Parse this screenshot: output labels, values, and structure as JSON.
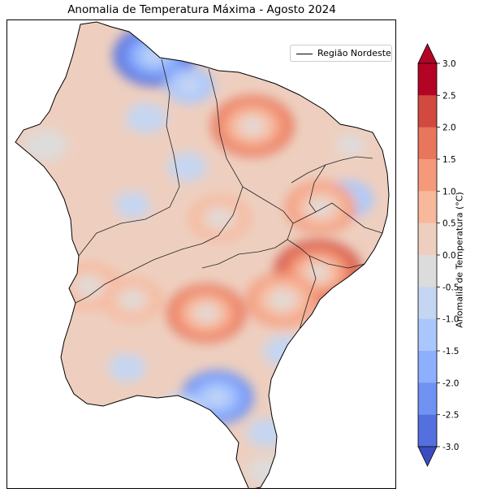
{
  "title": "Anomalia de Temperatura Máxima - Agosto 2024",
  "legend": {
    "label": "Região Nordeste",
    "line_color": "#000000"
  },
  "colorbar": {
    "label": "Anomalia de Temperatura (°C)",
    "ticks": [
      "3.0",
      "2.5",
      "2.0",
      "1.5",
      "1.0",
      "0.5",
      "0.0",
      "-0.5",
      "-1.0",
      "-1.5",
      "-2.0",
      "-2.5",
      "-3.0"
    ],
    "colors": [
      "#b40426",
      "#d1493f",
      "#e8765c",
      "#f49a7b",
      "#f7b89c",
      "#eecfbf",
      "#dddcdc",
      "#c5d6f2",
      "#aac7fd",
      "#8db0fe",
      "#6f92f3",
      "#5470de",
      "#3b4cc0"
    ],
    "over_color": "#b40426",
    "under_color": "#3b4cc0"
  },
  "chart_data": {
    "type": "heatmap",
    "title": "Anomalia de Temperatura Máxima - Agosto 2024",
    "variable": "Anomalia de Temperatura (°C)",
    "levels": [
      -3.0,
      -2.5,
      -2.0,
      -1.5,
      -1.0,
      -0.5,
      0.0,
      0.5,
      1.0,
      1.5,
      2.0,
      2.5,
      3.0
    ],
    "vmin": -3.0,
    "vmax": 3.0,
    "extend": "both",
    "colormap": "coolwarm",
    "legend_placement": "top-right",
    "colorbar_placement": "right",
    "base_anomaly": 0.6,
    "features": [
      {
        "lon": -43.5,
        "lat": -2.3,
        "value": -2.6
      },
      {
        "lon": -42.2,
        "lat": -3.4,
        "value": -0.8
      },
      {
        "lon": -39.9,
        "lat": -4.9,
        "value": 2.6
      },
      {
        "lon": -36.3,
        "lat": -5.6,
        "value": 1.2
      },
      {
        "lon": -36.4,
        "lat": -7.6,
        "value": -0.9
      },
      {
        "lon": -37.4,
        "lat": -7.9,
        "value": 2.0
      },
      {
        "lon": -37.5,
        "lat": -10.3,
        "value": 2.9
      },
      {
        "lon": -38.8,
        "lat": -11.3,
        "value": 2.1
      },
      {
        "lon": -41.6,
        "lat": -11.8,
        "value": 2.4
      },
      {
        "lon": -41.2,
        "lat": -14.9,
        "value": -2.1
      },
      {
        "lon": -42.5,
        "lat": -15.4,
        "value": -0.6
      },
      {
        "lon": -39.4,
        "lat": -16.2,
        "value": -0.3
      },
      {
        "lon": -44.5,
        "lat": -13.8,
        "value": -0.2
      },
      {
        "lon": -42.3,
        "lat": -6.4,
        "value": -0.3
      },
      {
        "lon": -44.3,
        "lat": -7.8,
        "value": -0.1
      },
      {
        "lon": -41.1,
        "lat": -8.3,
        "value": 1.5
      },
      {
        "lon": -47.5,
        "lat": -5.6,
        "value": 0.5
      },
      {
        "lon": -45.9,
        "lat": -10.8,
        "value": 1.6
      },
      {
        "lon": -44.3,
        "lat": -11.3,
        "value": 1.4
      },
      {
        "lon": -38.7,
        "lat": -13.2,
        "value": -0.5
      },
      {
        "lon": -39.4,
        "lat": -17.6,
        "value": 0.2
      },
      {
        "lon": -43.8,
        "lat": -4.6,
        "value": -0.4
      }
    ]
  }
}
